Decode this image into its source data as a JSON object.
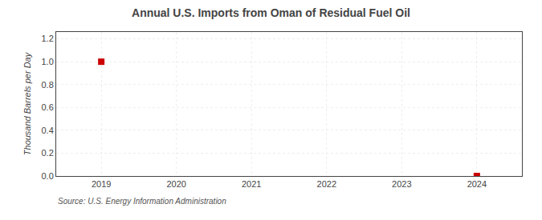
{
  "chart_data": {
    "type": "scatter",
    "title": "Annual U.S. Imports from Oman of Residual Fuel Oil",
    "ylabel": "Thousand Barrels per Day",
    "source": "Source: U.S. Energy Information Administration",
    "x": [
      2019,
      2024
    ],
    "values": [
      1.0,
      0.0
    ],
    "color": "#cc0000",
    "marker": "square",
    "xlim": [
      2018.4,
      2024.6
    ],
    "xticks": [
      2019,
      2020,
      2021,
      2022,
      2023,
      2024
    ],
    "ylim": [
      0.0,
      1.26
    ],
    "yticks": [
      {
        "value": 0,
        "label": "0.0"
      },
      0.2,
      0.4,
      0.6,
      0.8,
      {
        "value": 1,
        "label": "1.0"
      },
      1.2
    ],
    "grid": true
  }
}
